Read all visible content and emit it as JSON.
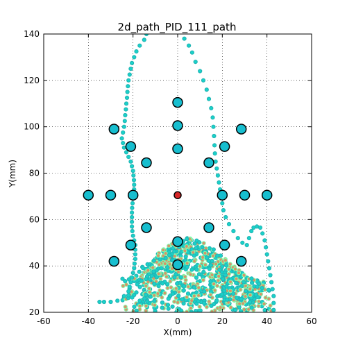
{
  "chart_data": {
    "type": "scatter",
    "title": "2d_path_PID_111_path",
    "xlabel": "X(mm)",
    "ylabel": "Y(mm)",
    "xlim": [
      -60,
      60
    ],
    "ylim": [
      20,
      140
    ],
    "xticks": [
      -60,
      -40,
      -20,
      0,
      20,
      40,
      60
    ],
    "yticks": [
      20,
      40,
      60,
      80,
      100,
      120,
      140
    ],
    "grid": true,
    "colors": {
      "target_fill": "#17becf",
      "target_center": "#d62728",
      "path_fill": "#1ad1c9",
      "path_edge": "#22b3b3",
      "cloud_edge_alt": "#7fffb0",
      "cloud_fill_alt": "#d4956a",
      "accent_blue": "#1f77b4"
    },
    "targets": [
      {
        "x": 0,
        "y": 70.5,
        "center": true
      },
      {
        "x": -40,
        "y": 70.5
      },
      {
        "x": -30,
        "y": 70.5
      },
      {
        "x": -20,
        "y": 70.5
      },
      {
        "x": 20,
        "y": 70.5
      },
      {
        "x": 30,
        "y": 70.5
      },
      {
        "x": 40,
        "y": 70.5
      },
      {
        "x": 0,
        "y": 110.5
      },
      {
        "x": 0,
        "y": 100.5
      },
      {
        "x": 0,
        "y": 90.5
      },
      {
        "x": 0,
        "y": 50.5
      },
      {
        "x": 0,
        "y": 40.5
      },
      {
        "x": -28.5,
        "y": 99
      },
      {
        "x": -21,
        "y": 91.5
      },
      {
        "x": -14,
        "y": 84.5
      },
      {
        "x": 14,
        "y": 84.5
      },
      {
        "x": 21,
        "y": 91.5
      },
      {
        "x": 28.5,
        "y": 99
      },
      {
        "x": -28.5,
        "y": 42
      },
      {
        "x": -21,
        "y": 49
      },
      {
        "x": -14,
        "y": 56.5
      },
      {
        "x": 14,
        "y": 56.5
      },
      {
        "x": 21,
        "y": 49
      },
      {
        "x": 28.5,
        "y": 42
      }
    ],
    "path_left": [
      [
        -14,
        140
      ],
      [
        -15,
        137.5
      ],
      [
        -17,
        135
      ],
      [
        -18.5,
        132.5
      ],
      [
        -19.5,
        130
      ],
      [
        -20.5,
        127.5
      ],
      [
        -21,
        125
      ],
      [
        -21.5,
        122.5
      ],
      [
        -22,
        120
      ],
      [
        -22.3,
        117.5
      ],
      [
        -22.5,
        115
      ],
      [
        -22.7,
        112.5
      ],
      [
        -23,
        110
      ],
      [
        -23.2,
        107.5
      ],
      [
        -23.5,
        105
      ],
      [
        -23.7,
        102.5
      ],
      [
        -24,
        100
      ],
      [
        -24.5,
        97.5
      ],
      [
        -25,
        95
      ],
      [
        -24.5,
        93
      ],
      [
        -24,
        91
      ],
      [
        -23,
        89
      ],
      [
        -22,
        87
      ],
      [
        -21,
        85
      ],
      [
        -20.5,
        83
      ],
      [
        -20,
        81
      ],
      [
        -19.8,
        79
      ],
      [
        -19.6,
        77
      ],
      [
        -19.5,
        75
      ],
      [
        -19.5,
        73
      ],
      [
        -19.7,
        71
      ],
      [
        -20,
        69
      ],
      [
        -20.2,
        67
      ],
      [
        -20.4,
        65
      ],
      [
        -20.5,
        63
      ],
      [
        -20.5,
        61
      ],
      [
        -20.5,
        59
      ],
      [
        -20.5,
        57
      ],
      [
        -20.3,
        55
      ],
      [
        -20,
        53
      ],
      [
        -19.5,
        51
      ],
      [
        -19,
        49
      ],
      [
        -19,
        47
      ],
      [
        -19,
        45
      ],
      [
        -19,
        43
      ],
      [
        -19.3,
        41
      ],
      [
        -19.5,
        39
      ],
      [
        -20,
        37
      ],
      [
        -20.5,
        35
      ],
      [
        -21,
        33
      ],
      [
        -21.5,
        31
      ],
      [
        -22,
        29
      ],
      [
        -24,
        27
      ],
      [
        -27,
        25
      ],
      [
        -30,
        24.5
      ],
      [
        -33,
        24.5
      ],
      [
        -35,
        24.5
      ]
    ],
    "path_right": [
      [
        3,
        138
      ],
      [
        5,
        135
      ],
      [
        6.5,
        132
      ],
      [
        8,
        128
      ],
      [
        10,
        124
      ],
      [
        11.5,
        120
      ],
      [
        13,
        116
      ],
      [
        14,
        112
      ],
      [
        15,
        108
      ],
      [
        15.7,
        104
      ],
      [
        16,
        100
      ],
      [
        16.3,
        96
      ],
      [
        16.5,
        92
      ],
      [
        16.7,
        88.5
      ],
      [
        17,
        85
      ],
      [
        17.5,
        82
      ],
      [
        18,
        79
      ],
      [
        18.5,
        76
      ],
      [
        19,
        73
      ],
      [
        19.5,
        70
      ],
      [
        20,
        67
      ],
      [
        20.5,
        64
      ],
      [
        21.5,
        61
      ],
      [
        23,
        58
      ],
      [
        25,
        55
      ],
      [
        27,
        52
      ],
      [
        29,
        50
      ],
      [
        31,
        49
      ],
      [
        32,
        52
      ],
      [
        33,
        55
      ],
      [
        34,
        56.5
      ],
      [
        35.5,
        57
      ],
      [
        37,
        56.5
      ],
      [
        38,
        54
      ],
      [
        39,
        51
      ],
      [
        39.5,
        48
      ],
      [
        40,
        45
      ],
      [
        40.5,
        42
      ],
      [
        41,
        39
      ],
      [
        41.5,
        36
      ],
      [
        42,
        33
      ],
      [
        42.5,
        30
      ],
      [
        43,
        27
      ],
      [
        43,
        24
      ],
      [
        43,
        21
      ]
    ],
    "cloud": {
      "x_range": [
        -26,
        44
      ],
      "y_range": [
        20,
        52
      ],
      "count": 900,
      "seed": 111
    }
  }
}
